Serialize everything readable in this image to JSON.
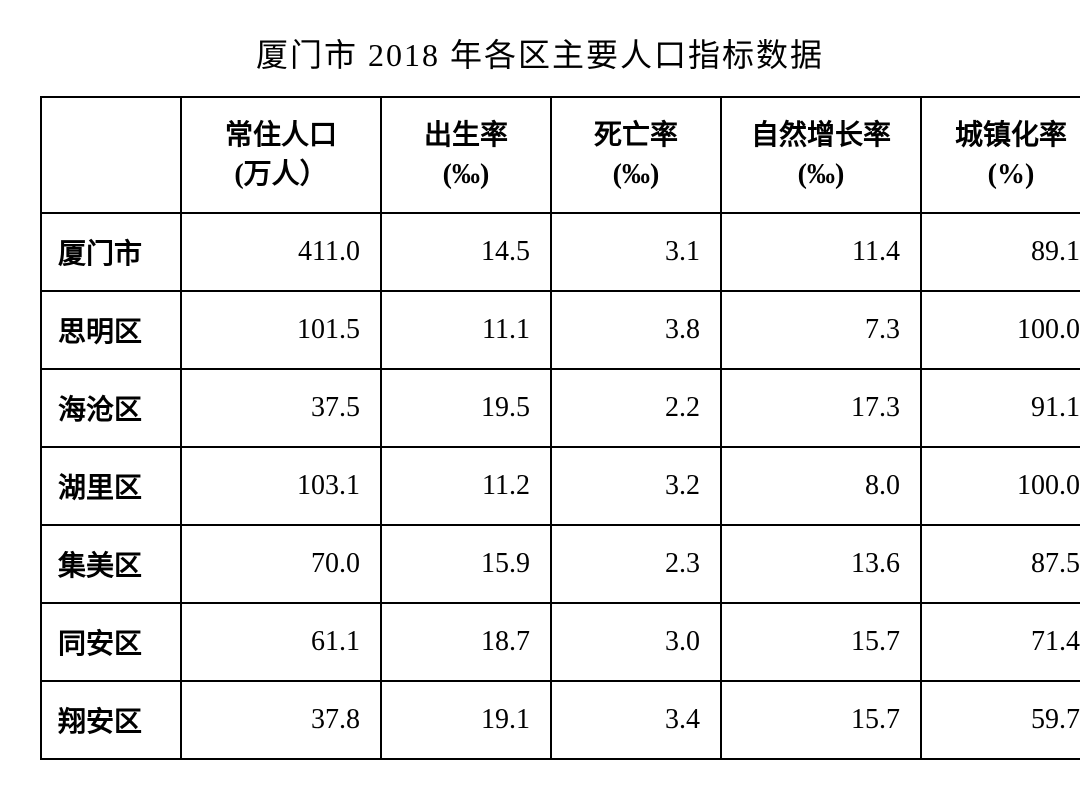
{
  "title": "厦门市 2018 年各区主要人口指标数据",
  "table": {
    "type": "table",
    "columns": [
      {
        "label": "",
        "unit": ""
      },
      {
        "label": "常住人口",
        "unit": "(万人）"
      },
      {
        "label": "出生率",
        "unit": "(‰)"
      },
      {
        "label": "死亡率",
        "unit": "(‰)"
      },
      {
        "label": "自然增长率",
        "unit": "(‰)"
      },
      {
        "label": "城镇化率",
        "unit": "(%)"
      }
    ],
    "rows": [
      {
        "label": "厦门市",
        "values": [
          "411.0",
          "14.5",
          "3.1",
          "11.4",
          "89.1"
        ]
      },
      {
        "label": "思明区",
        "values": [
          "101.5",
          "11.1",
          "3.8",
          "7.3",
          "100.0"
        ]
      },
      {
        "label": "海沧区",
        "values": [
          "37.5",
          "19.5",
          "2.2",
          "17.3",
          "91.1"
        ]
      },
      {
        "label": "湖里区",
        "values": [
          "103.1",
          "11.2",
          "3.2",
          "8.0",
          "100.0"
        ]
      },
      {
        "label": "集美区",
        "values": [
          "70.0",
          "15.9",
          "2.3",
          "13.6",
          "87.5"
        ]
      },
      {
        "label": "同安区",
        "values": [
          "61.1",
          "18.7",
          "3.0",
          "15.7",
          "71.4"
        ]
      },
      {
        "label": "翔安区",
        "values": [
          "37.8",
          "19.1",
          "3.4",
          "15.7",
          "59.7"
        ]
      }
    ],
    "background_color": "#ffffff",
    "border_color": "#000000",
    "text_color": "#000000",
    "title_fontsize": 32,
    "header_fontsize": 28,
    "cell_fontsize": 28,
    "border_width": 2
  }
}
